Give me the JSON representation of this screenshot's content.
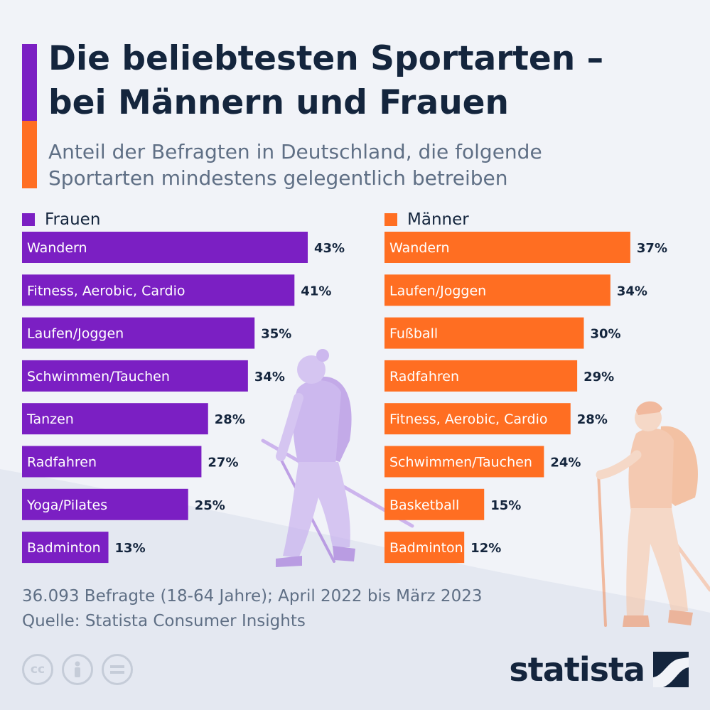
{
  "header": {
    "title_line1": "Die beliebtesten Sportarten –",
    "title_line2": "bei Männern und Frauen",
    "subtitle_line1": "Anteil der Befragten in Deutschland, die folgende",
    "subtitle_line2": "Sportarten mindestens gelegentlich betreiben"
  },
  "colors": {
    "women": "#7b1fc3",
    "men": "#ff6e22",
    "accent_top": "#7b1fc3",
    "accent_bottom": "#ff6e22",
    "text_dark": "#14253d",
    "text_muted": "#5f6f85"
  },
  "chart_data": [
    {
      "type": "bar",
      "series": [
        {
          "name": "Frauen"
        }
      ],
      "categories": [
        "Wandern",
        "Fitness, Aerobic, Cardio",
        "Laufen/Joggen",
        "Schwimmen/Tauchen",
        "Tanzen",
        "Radfahren",
        "Yoga/Pilates",
        "Badminton"
      ],
      "values": [
        43,
        41,
        35,
        34,
        28,
        27,
        25,
        13
      ],
      "labels": [
        "43%",
        "41%",
        "35%",
        "34%",
        "28%",
        "27%",
        "25%",
        "13%"
      ],
      "unit": "%",
      "orientation": "horizontal",
      "xlim": [
        0,
        43
      ]
    },
    {
      "type": "bar",
      "series": [
        {
          "name": "Männer"
        }
      ],
      "categories": [
        "Wandern",
        "Laufen/Joggen",
        "Fußball",
        "Radfahren",
        "Fitness, Aerobic, Cardio",
        "Schwimmen/Tauchen",
        "Basketball",
        "Badminton"
      ],
      "values": [
        37,
        34,
        30,
        29,
        28,
        24,
        15,
        12
      ],
      "labels": [
        "37%",
        "34%",
        "30%",
        "29%",
        "28%",
        "24%",
        "15%",
        "12%"
      ],
      "unit": "%",
      "orientation": "horizontal",
      "xlim": [
        0,
        43
      ]
    }
  ],
  "footer": {
    "note_line1": "36.093 Befragte (18-64 Jahre); April 2022 bis März 2023",
    "note_line2": "Quelle: Statista Consumer Insights",
    "cc_icons": [
      "cc-icon",
      "by-person-icon",
      "nd-equals-icon"
    ],
    "brand": "statista",
    "brand_icon": "statista-logo-icon"
  }
}
